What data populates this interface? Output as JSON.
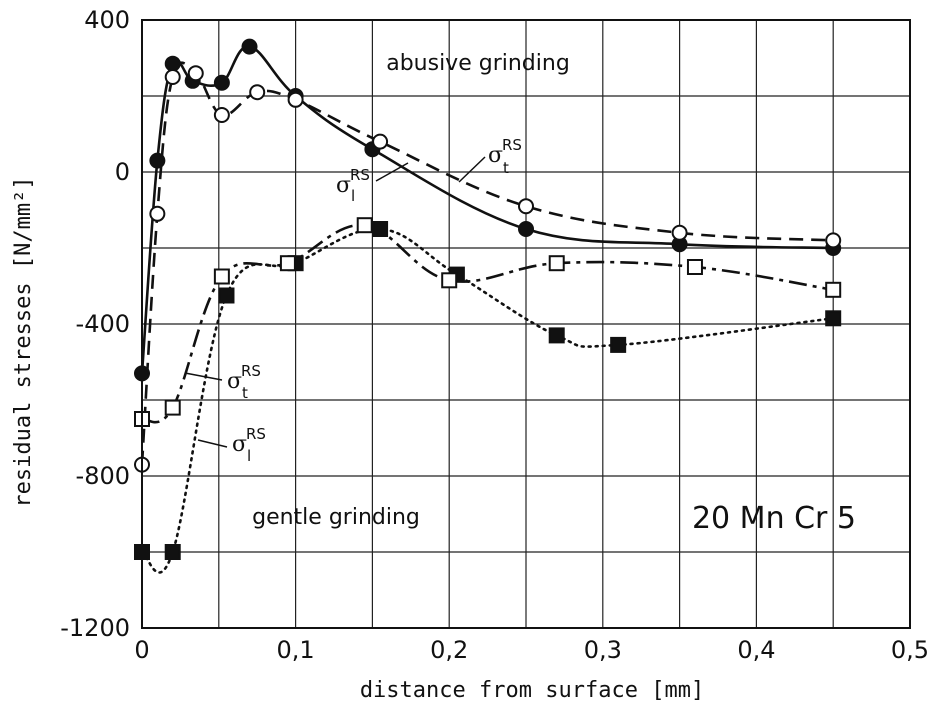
{
  "chart_data": {
    "type": "line",
    "title": "",
    "xlabel": "distance  from surface [mm]",
    "ylabel": "residual stresses [N/mm²]",
    "xlim": [
      0,
      0.5
    ],
    "ylim": [
      -1200,
      400
    ],
    "x_ticks": [
      0,
      0.1,
      0.2,
      0.3,
      0.4,
      0.5
    ],
    "x_tick_labels": [
      "0",
      "0,1",
      "0,2",
      "0,3",
      "0,4",
      "0,5"
    ],
    "y_ticks": [
      -1200,
      -800,
      -400,
      0,
      400
    ],
    "y_tick_labels": [
      "-1200",
      "-800",
      "-400",
      "0",
      "400"
    ],
    "grid": true,
    "annotations": {
      "abusive": "abusive  grinding",
      "gentle": "gentle  grinding",
      "material": "20 Mn Cr 5",
      "sigma": "σ",
      "sup": "RS",
      "sub_l": "l",
      "sub_t": "t"
    },
    "series": [
      {
        "group": "abusive grinding",
        "component": "l",
        "marker": "filled-circle",
        "line": "solid",
        "x": [
          0,
          0.01,
          0.02,
          0.033,
          0.052,
          0.07,
          0.1,
          0.15,
          0.25,
          0.35,
          0.45
        ],
        "y": [
          -530,
          30,
          285,
          240,
          235,
          330,
          200,
          60,
          -150,
          -190,
          -200
        ]
      },
      {
        "group": "abusive grinding",
        "component": "t",
        "marker": "open-circle",
        "line": "dashed",
        "x": [
          0,
          0.01,
          0.02,
          0.035,
          0.052,
          0.075,
          0.1,
          0.155,
          0.25,
          0.35,
          0.45
        ],
        "y": [
          -770,
          -110,
          250,
          260,
          150,
          210,
          190,
          80,
          -90,
          -160,
          -180
        ]
      },
      {
        "group": "gentle grinding",
        "component": "l",
        "marker": "filled-square",
        "line": "dotted",
        "x": [
          0,
          0.02,
          0.055,
          0.1,
          0.155,
          0.205,
          0.27,
          0.31,
          0.45
        ],
        "y": [
          -1000,
          -1000,
          -325,
          -240,
          -150,
          -270,
          -430,
          -455,
          -385
        ]
      },
      {
        "group": "gentle grinding",
        "component": "t",
        "marker": "open-square",
        "line": "dash-dot",
        "x": [
          0,
          0.02,
          0.052,
          0.095,
          0.145,
          0.2,
          0.27,
          0.36,
          0.45
        ],
        "y": [
          -650,
          -620,
          -275,
          -240,
          -140,
          -285,
          -240,
          -250,
          -310
        ]
      }
    ]
  }
}
